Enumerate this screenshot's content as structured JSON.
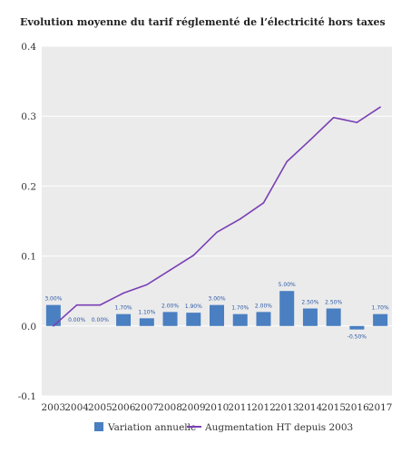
{
  "chart_data": {
    "type": "bar",
    "title": "Evolution moyenne du tarif réglementé de l’électricité hors taxes",
    "categories": [
      "2003",
      "2004",
      "2005",
      "2006",
      "2007",
      "2008",
      "2009",
      "2010",
      "2011",
      "2012",
      "2013",
      "2014",
      "2015",
      "2016",
      "2017"
    ],
    "ylim": [
      -0.1,
      0.4
    ],
    "yticks": [
      "-0.1",
      "0.0",
      "0.1",
      "0.2",
      "0.3",
      "0.4"
    ],
    "grid": true,
    "legend_position": "bottom",
    "series": [
      {
        "name": "Variation annuelle",
        "type": "bar",
        "color": "#4a7fc1",
        "values": [
          0.03,
          0.0,
          0.0,
          0.017,
          0.011,
          0.02,
          0.019,
          0.03,
          0.017,
          0.02,
          0.05,
          0.025,
          0.025,
          -0.005,
          0.017
        ],
        "labels": [
          "3.00%",
          "0.00%",
          "0.00%",
          "1.70%",
          "1.10%",
          "2.00%",
          "1.90%",
          "3.00%",
          "1.70%",
          "2.00%",
          "5.00%",
          "2.50%",
          "2.50%",
          "-0.50%",
          "1.70%"
        ]
      },
      {
        "name": "Augmentation HT depuis 2003",
        "type": "line",
        "color": "#7a3fb5",
        "values": [
          0.0,
          0.03,
          0.03,
          0.047,
          0.059,
          0.08,
          0.101,
          0.134,
          0.153,
          0.176,
          0.235,
          0.266,
          0.298,
          0.291,
          0.313
        ]
      }
    ]
  }
}
